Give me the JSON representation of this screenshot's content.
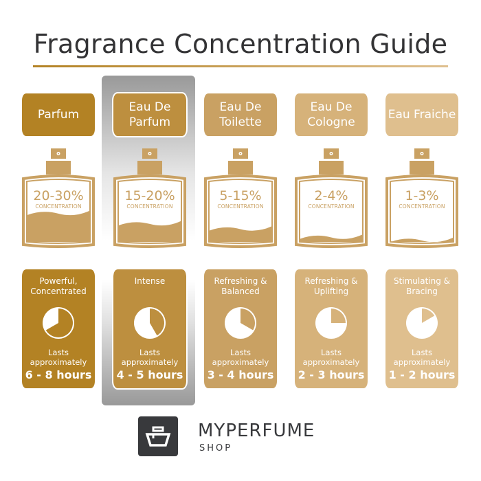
{
  "title": "Fragrance Concentration Guide",
  "highlight_index": 1,
  "columns": [
    {
      "name": "Parfum",
      "percent": "20-30%",
      "concentration_label": "CONCENTRATION",
      "fill_level": 0.3,
      "description": "Powerful, Concentrated",
      "lasts_label": "Lasts approximately",
      "hours": "6 - 8 hours",
      "clock_hours": 8,
      "color": "#b38224"
    },
    {
      "name": "Eau De Parfum",
      "percent": "15-20%",
      "concentration_label": "CONCENTRATION",
      "fill_level": 0.2,
      "description": "Intense",
      "lasts_label": "Lasts approximately",
      "hours": "4 - 5 hours",
      "clock_hours": 5,
      "color": "#bd8f3f"
    },
    {
      "name": "Eau De Toilette",
      "percent": "5-15%",
      "concentration_label": "CONCENTRATION",
      "fill_level": 0.15,
      "description": "Refreshing & Balanced",
      "lasts_label": "Lasts approximately",
      "hours": "3 - 4 hours",
      "clock_hours": 4,
      "color": "#c9a163"
    },
    {
      "name": "Eau De Cologne",
      "percent": "2-4%",
      "concentration_label": "CONCENTRATION",
      "fill_level": 0.07,
      "description": "Refreshing & Uplifting",
      "lasts_label": "Lasts approximately",
      "hours": "2 - 3 hours",
      "clock_hours": 3,
      "color": "#d6b27a"
    },
    {
      "name": "Eau Fraiche",
      "percent": "1-3%",
      "concentration_label": "CONCENTRATION",
      "fill_level": 0.04,
      "description": "Stimulating & Bracing",
      "lasts_label": "Lasts approximately",
      "hours": "1 - 2 hours",
      "clock_hours": 2,
      "color": "#dfbf8e"
    }
  ],
  "bottle_color": "#c9a163",
  "logo": {
    "brand": "MYPERFUME",
    "sub": "SHOP"
  }
}
